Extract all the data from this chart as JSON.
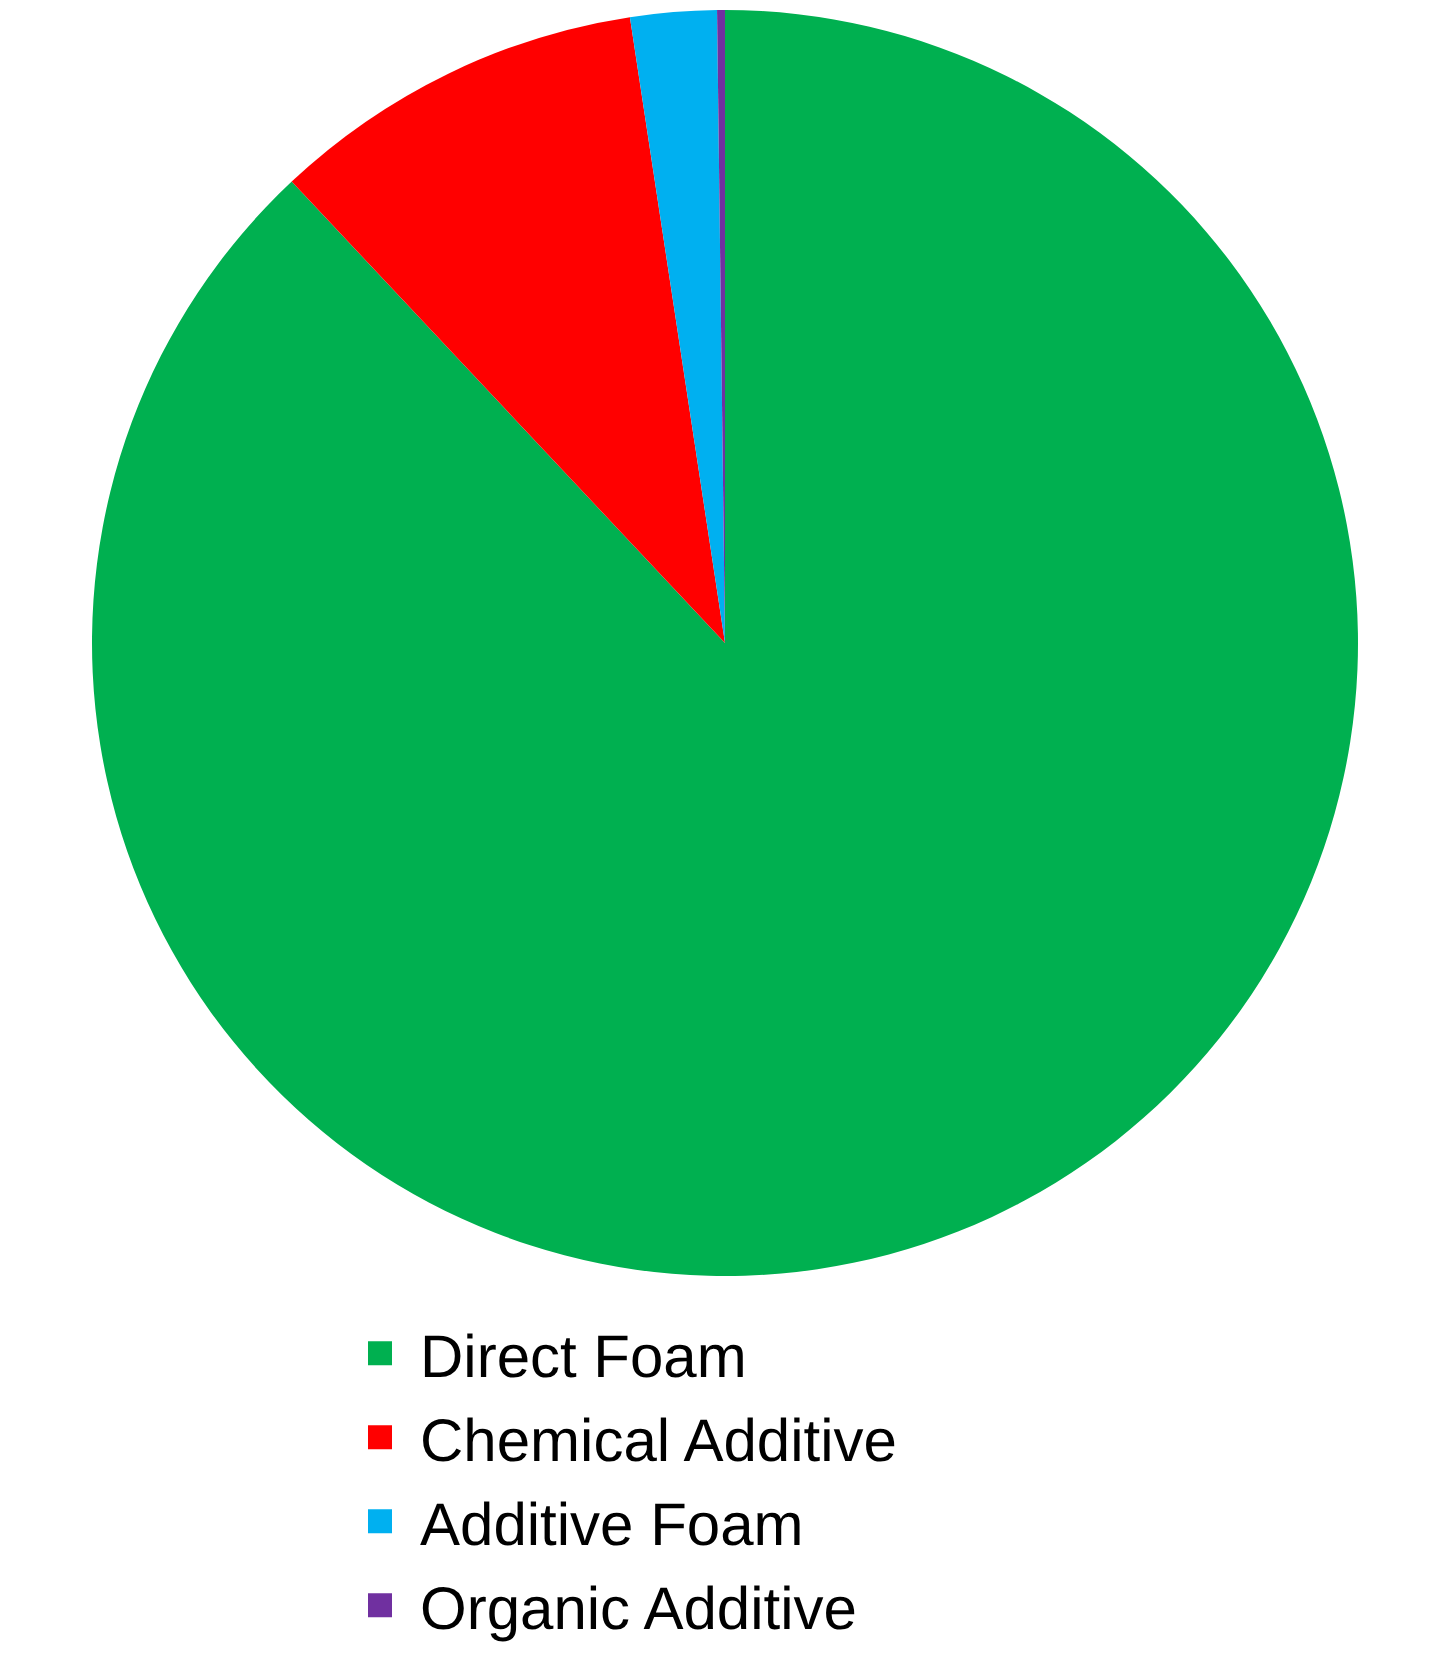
{
  "chart_data": {
    "type": "pie",
    "categories": [
      "Direct Foam",
      "Chemical Additive",
      "Additive Foam",
      "Organic Additive"
    ],
    "values": [
      88.0,
      9.6,
      2.2,
      0.2
    ],
    "colors": [
      "#00b050",
      "#ff0000",
      "#00b0f0",
      "#7030a0"
    ],
    "legend": "bottom"
  }
}
